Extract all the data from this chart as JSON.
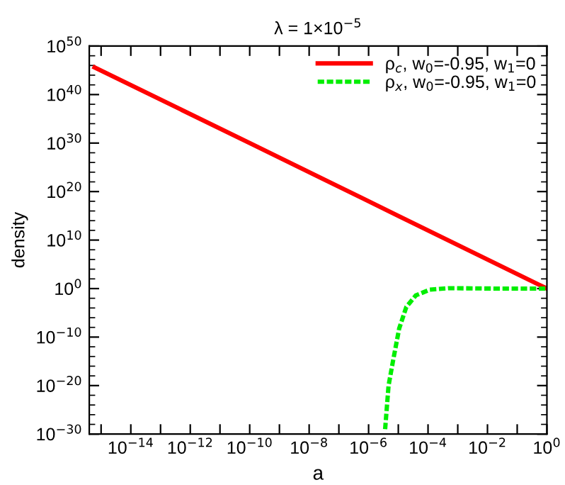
{
  "chart_data": {
    "type": "line",
    "title": "λ = 1×10$^{−5}$",
    "xlabel": "a",
    "ylabel": "density",
    "log": "xy",
    "grid": false,
    "legend": "top right",
    "xlim": [
      4e-16,
      1
    ],
    "ylim": [
      1e-30,
      1e+50
    ],
    "xticks": [
      {
        "value": 1e-15,
        "label": null
      },
      {
        "value": 1e-14,
        "label": "10$^{−14}$"
      },
      {
        "value": 1e-13,
        "label": null
      },
      {
        "value": 1e-12,
        "label": "10$^{−12}$"
      },
      {
        "value": 1e-11,
        "label": null
      },
      {
        "value": 1e-10,
        "label": "10$^{−10}$"
      },
      {
        "value": 1e-09,
        "label": null
      },
      {
        "value": 1e-08,
        "label": "10$^{−8}$"
      },
      {
        "value": 1e-07,
        "label": null
      },
      {
        "value": 1e-06,
        "label": "10$^{−6}$"
      },
      {
        "value": 1e-05,
        "label": null
      },
      {
        "value": 0.0001,
        "label": "10$^{−4}$"
      },
      {
        "value": 0.001,
        "label": null
      },
      {
        "value": 0.01,
        "label": "10$^{−2}$"
      },
      {
        "value": 0.1,
        "label": null
      },
      {
        "value": 1,
        "label": "10$^{0}$"
      }
    ],
    "yticks": [
      {
        "value": 1e-30,
        "label": "10$^{−30}$"
      },
      {
        "value": 1e-20,
        "label": "10$^{−20}$"
      },
      {
        "value": 1e-10,
        "label": "10$^{−10}$"
      },
      {
        "value": 1,
        "label": "10$^{0}$"
      },
      {
        "value": 10000000000.0,
        "label": "10$^{10}$"
      },
      {
        "value": 1e+20,
        "label": "10$^{20}$"
      },
      {
        "value": 1e+30,
        "label": "10$^{30}$"
      },
      {
        "value": 1e+40,
        "label": "10$^{40}$"
      },
      {
        "value": 1e+50,
        "label": "10$^{50}$"
      }
    ],
    "series": [
      {
        "name": "ρ$_{c}$, w$_{0}$=-0.95, w$_{1}$=0",
        "color": "#ff0000",
        "line_style": "solid",
        "x": [
          6e-16,
          1e-10,
          1e-05,
          1
        ],
        "values": [
          4e+45,
          1e+30,
          1000000000000000.0,
          1
        ]
      },
      {
        "name": "ρ$_{x}$, w$_{0}$=-0.95, w$_{1}$=0",
        "color": "#00ee00",
        "line_style": "dashed",
        "x": [
          3.6e-06,
          4.7e-06,
          6.6e-06,
          1.07e-05,
          1.86e-05,
          3.9e-05,
          0.000115,
          0.0005,
          0.02,
          1
        ],
        "values": [
          1e-29,
          1e-20,
          1e-15,
          6e-09,
          0.00016,
          0.04,
          0.6,
          1.2,
          1,
          1
        ]
      }
    ]
  }
}
